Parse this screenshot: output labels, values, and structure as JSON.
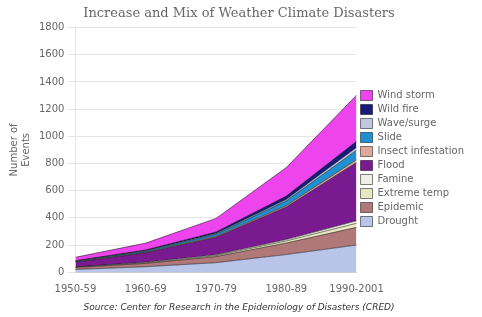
{
  "chart_data": {
    "type": "area",
    "title": "Increase and Mix of Weather Climate Disasters",
    "ylabel": "Number of\nEvents",
    "annotations": [
      "Source: Center for Research in the Epidemiology of Disasters (CRED)"
    ],
    "categories": [
      "1950-59",
      "1960-69",
      "1970-79",
      "1980-89",
      "1990-2001"
    ],
    "series": [
      {
        "name": "Drought",
        "color": "#b8c4e8",
        "values": [
          20,
          40,
          70,
          130,
          200
        ]
      },
      {
        "name": "Epidemic",
        "color": "#b07878",
        "values": [
          15,
          25,
          45,
          85,
          130
        ]
      },
      {
        "name": "Extreme temp",
        "color": "#e8e8c0",
        "values": [
          2,
          4,
          7,
          15,
          30
        ]
      },
      {
        "name": "Famine",
        "color": "#f0f0e8",
        "values": [
          2,
          4,
          6,
          10,
          18
        ]
      },
      {
        "name": "Flood",
        "color": "#7a1a90",
        "values": [
          35,
          70,
          130,
          240,
          430
        ]
      },
      {
        "name": "Insect infestation",
        "color": "#e0a898",
        "values": [
          2,
          4,
          6,
          10,
          20
        ]
      },
      {
        "name": "Slide",
        "color": "#2090d0",
        "values": [
          4,
          8,
          15,
          35,
          70
        ]
      },
      {
        "name": "Wave/surge",
        "color": "#c0c8e0",
        "values": [
          2,
          3,
          5,
          10,
          20
        ]
      },
      {
        "name": "Wild fire",
        "color": "#1a1a7a",
        "values": [
          3,
          6,
          12,
          25,
          45
        ]
      },
      {
        "name": "Wind storm",
        "color": "#ee44ee",
        "values": [
          25,
          50,
          100,
          210,
          340
        ]
      }
    ],
    "stacked": true,
    "ylim": [
      0,
      1800
    ],
    "yticks": [
      0,
      200,
      400,
      600,
      800,
      1000,
      1200,
      1400,
      1600,
      1800
    ],
    "grid": true,
    "legend": "right"
  }
}
